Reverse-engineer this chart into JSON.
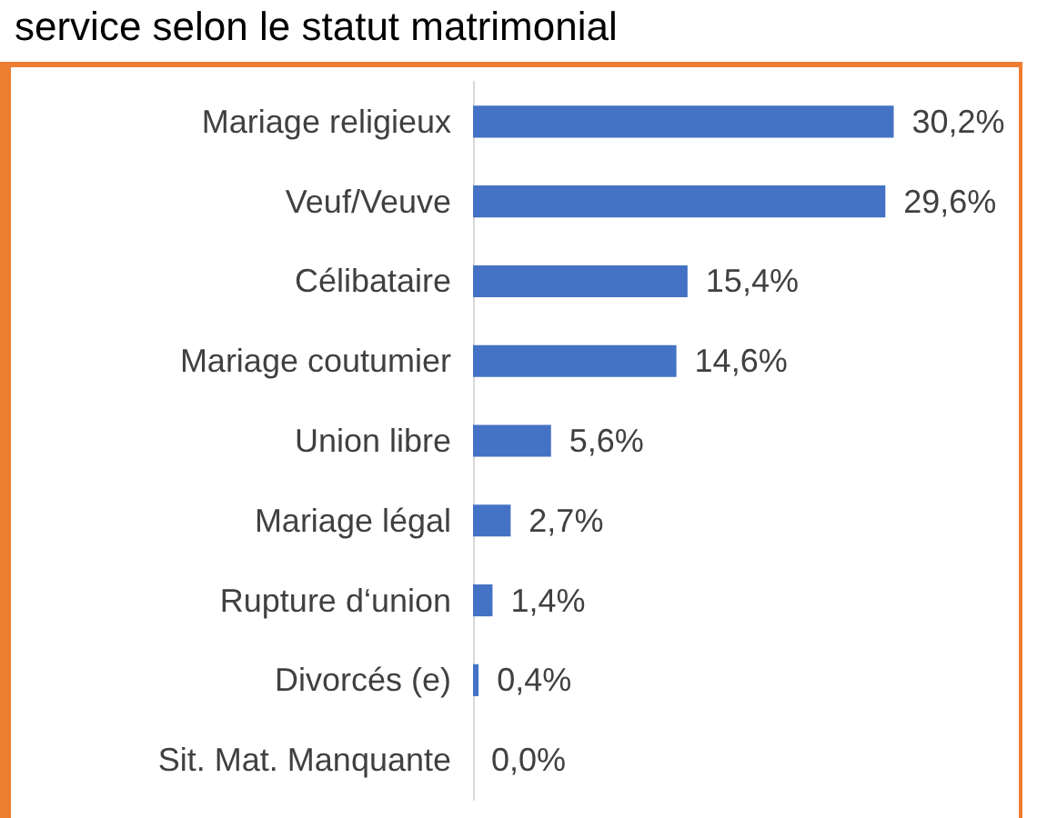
{
  "chart_data": {
    "type": "bar",
    "orientation": "horizontal",
    "title": "service selon le statut matrimonial",
    "categories": [
      "Mariage religieux",
      "Veuf/Veuve",
      "Célibataire",
      "Mariage coutumier",
      "Union libre",
      "Mariage légal",
      "Rupture d‘union",
      "Divorcés (e)",
      "Sit. Mat. Manquante"
    ],
    "values": [
      30.2,
      29.6,
      15.4,
      14.6,
      5.6,
      2.7,
      1.4,
      0.4,
      0.0
    ],
    "value_labels": [
      "30,2%",
      "29,6%",
      "15,4%",
      "14,6%",
      "5,6%",
      "2,7%",
      "1,4%",
      "0,4%",
      "0,0%"
    ],
    "color": "#4472c4"
  }
}
